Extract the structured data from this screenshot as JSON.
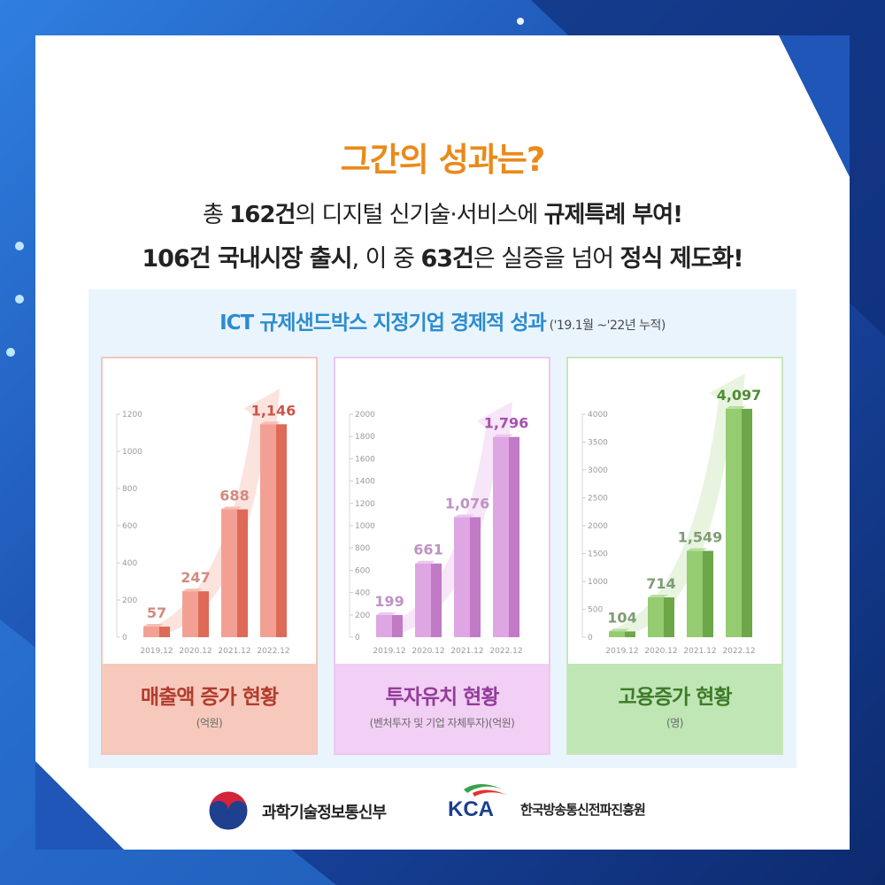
{
  "headline": "그간의 성과는?",
  "summary": {
    "l1_p1": "총 ",
    "l1_b1": "162건",
    "l1_p2": "의 디지털 신기술·서비스에 ",
    "l1_b2": "규제특례 부여!",
    "l2_b1": "106건 국내시장 출시",
    "l2_p1": ", 이 중 ",
    "l2_b2": "63건",
    "l2_p2": "은 실증을 넘어 ",
    "l2_b3": "정식 제도화!"
  },
  "panel": {
    "title": "ICT 규제샌드박스 지정기업 경제적 성과",
    "period": " ('19.1월 ~'22년 누적)"
  },
  "colors": {
    "sales": "#e27364",
    "invest": "#c27ac9",
    "jobs": "#72aa50"
  },
  "chart_data": [
    {
      "type": "bar",
      "title": "매출액 증가 현황",
      "subtitle": "(억원)",
      "categories": [
        "2019.12",
        "2020.12",
        "2021.12",
        "2022.12"
      ],
      "values": [
        57,
        247,
        688,
        1146
      ],
      "value_labels": [
        "57",
        "247",
        "688",
        "1,146"
      ],
      "yticks": [
        "0",
        "200",
        "400",
        "600",
        "800",
        "1000",
        "1200"
      ],
      "ylim": [
        0,
        1200
      ]
    },
    {
      "type": "bar",
      "title": "투자유치 현황",
      "subtitle": "(벤처투자 및 기업 자체투자)(억원)",
      "categories": [
        "2019.12",
        "2020.12",
        "2021.12",
        "2022.12"
      ],
      "values": [
        199,
        661,
        1076,
        1796
      ],
      "value_labels": [
        "199",
        "661",
        "1,076",
        "1,796"
      ],
      "yticks": [
        "0",
        "200",
        "400",
        "600",
        "800",
        "1000",
        "1200",
        "1400",
        "1600",
        "1800",
        "2000"
      ],
      "ylim": [
        0,
        2000
      ]
    },
    {
      "type": "bar",
      "title": "고용증가 현황",
      "subtitle": "(명)",
      "categories": [
        "2019.12",
        "2020.12",
        "2021.12",
        "2022.12"
      ],
      "values": [
        104,
        714,
        1549,
        4097
      ],
      "value_labels": [
        "104",
        "714",
        "1,549",
        "4,097"
      ],
      "yticks": [
        "0",
        "500",
        "1000",
        "1500",
        "2000",
        "2500",
        "3000",
        "3500",
        "4000"
      ],
      "ylim": [
        0,
        4000
      ]
    }
  ],
  "footer": {
    "org1": "과학기술정보통신부",
    "kca": "KCA",
    "org2": "한국방송통신전파진흥원"
  }
}
